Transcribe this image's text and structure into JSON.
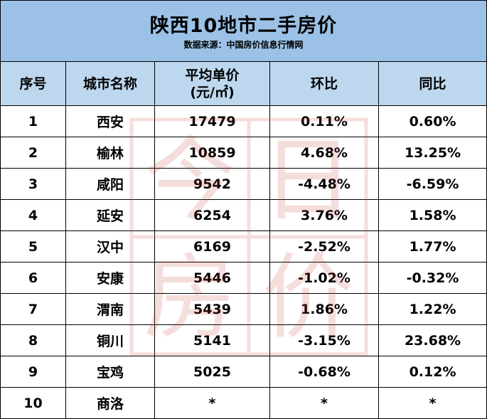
{
  "title": "陕西10地市二手房价",
  "subtitle": "数据来源：中国房价信息行情网",
  "columns": [
    "序号",
    "城市名称",
    "平均单价",
    "(元/㎡)",
    "环比",
    "同比"
  ],
  "rows": [
    [
      "1",
      "西安",
      "17479",
      "0.11%",
      "0.60%"
    ],
    [
      "2",
      "榆林",
      "10859",
      "4.68%",
      "13.25%"
    ],
    [
      "3",
      "咸阳",
      "9542",
      "-4.48%",
      "-6.59%"
    ],
    [
      "4",
      "延安",
      "6254",
      "3.76%",
      "1.58%"
    ],
    [
      "5",
      "汉中",
      "6169",
      "-2.52%",
      "1.77%"
    ],
    [
      "6",
      "安康",
      "5446",
      "-1.02%",
      "-0.32%"
    ],
    [
      "7",
      "渭南",
      "5439",
      "1.86%",
      "1.22%"
    ],
    [
      "8",
      "铜川",
      "5141",
      "-3.15%",
      "23.68%"
    ],
    [
      "9",
      "宝鸡",
      "5025",
      "-0.68%",
      "0.12%"
    ],
    [
      "10",
      "商洛",
      "*",
      "*",
      "*"
    ]
  ],
  "watermark_text": [
    "今",
    "日",
    "房",
    "价"
  ],
  "colors": {
    "title_bg": "#9bc2e6",
    "header_bg": "#bdd7ee",
    "watermark": "#c0392b"
  }
}
